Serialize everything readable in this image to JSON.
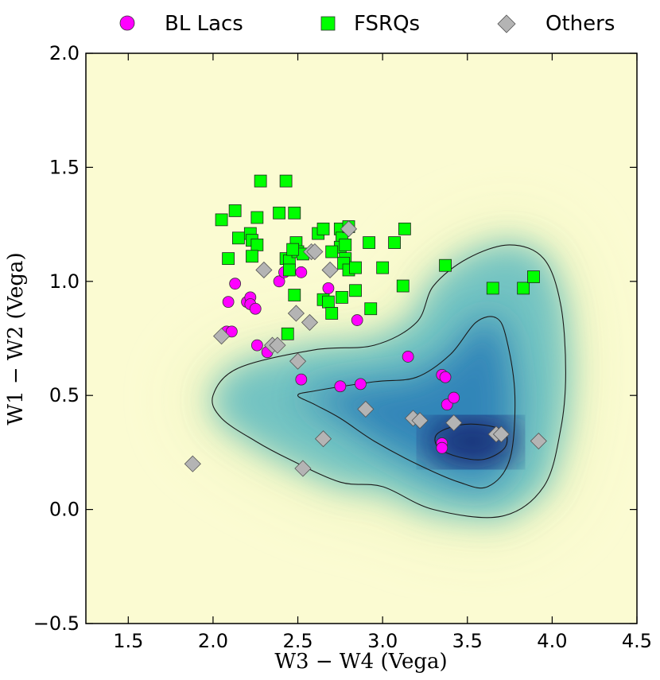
{
  "chart_data": {
    "type": "scatter",
    "xlabel": "W3 − W4 (Vega)",
    "ylabel": "W1 − W2 (Vega)",
    "xlim": [
      1.25,
      4.5
    ],
    "ylim": [
      -0.5,
      2.0
    ],
    "x_ticks": [
      1.5,
      2.0,
      2.5,
      3.0,
      3.5,
      4.0,
      4.5
    ],
    "x_tick_labels": [
      "1.5",
      "2.0",
      "2.5",
      "3.0",
      "3.5",
      "4.0",
      "4.5"
    ],
    "y_ticks": [
      -0.5,
      0.0,
      0.5,
      1.0,
      1.5,
      2.0
    ],
    "y_tick_labels": [
      "−0.5",
      "0.0",
      "0.5",
      "1.0",
      "1.5",
      "2.0"
    ],
    "legend_position": "top, outside plot",
    "background": {
      "type": "density",
      "description": "WISE blazar strip density",
      "colors": {
        "low": "#fbfbd2",
        "mid": "#41b6c4",
        "high": "#0c1a5a"
      }
    },
    "contours": [
      {
        "level": "outer",
        "points": [
          [
            2.05,
            0.4
          ],
          [
            2.0,
            0.5
          ],
          [
            2.15,
            0.62
          ],
          [
            2.6,
            0.7
          ],
          [
            2.95,
            0.72
          ],
          [
            3.2,
            0.82
          ],
          [
            3.3,
            0.98
          ],
          [
            3.5,
            1.1
          ],
          [
            3.75,
            1.16
          ],
          [
            3.95,
            1.1
          ],
          [
            4.05,
            0.9
          ],
          [
            4.08,
            0.6
          ],
          [
            4.05,
            0.35
          ],
          [
            3.95,
            0.1
          ],
          [
            3.7,
            -0.03
          ],
          [
            3.3,
            0.0
          ],
          [
            3.0,
            0.1
          ],
          [
            2.75,
            0.12
          ],
          [
            2.45,
            0.22
          ],
          [
            2.25,
            0.3
          ]
        ]
      },
      {
        "level": "middle",
        "points": [
          [
            2.5,
            0.5
          ],
          [
            2.6,
            0.52
          ],
          [
            2.95,
            0.56
          ],
          [
            3.2,
            0.58
          ],
          [
            3.4,
            0.68
          ],
          [
            3.55,
            0.82
          ],
          [
            3.67,
            0.84
          ],
          [
            3.73,
            0.75
          ],
          [
            3.78,
            0.5
          ],
          [
            3.75,
            0.22
          ],
          [
            3.62,
            0.1
          ],
          [
            3.45,
            0.12
          ],
          [
            3.2,
            0.2
          ],
          [
            2.95,
            0.3
          ],
          [
            2.75,
            0.4
          ],
          [
            2.6,
            0.46
          ]
        ]
      },
      {
        "level": "inner",
        "points": [
          [
            3.32,
            0.33
          ],
          [
            3.45,
            0.37
          ],
          [
            3.6,
            0.37
          ],
          [
            3.72,
            0.34
          ],
          [
            3.72,
            0.27
          ],
          [
            3.6,
            0.22
          ],
          [
            3.45,
            0.23
          ],
          [
            3.33,
            0.27
          ]
        ]
      }
    ],
    "series": [
      {
        "name": "BL Lacs",
        "marker": "circle",
        "color": "#ff00ff",
        "points": [
          [
            2.09,
            0.91
          ],
          [
            2.13,
            0.99
          ],
          [
            2.08,
            0.78
          ],
          [
            2.11,
            0.78
          ],
          [
            2.2,
            0.91
          ],
          [
            2.22,
            0.93
          ],
          [
            2.22,
            0.9
          ],
          [
            2.25,
            0.88
          ],
          [
            2.26,
            0.72
          ],
          [
            2.32,
            0.69
          ],
          [
            2.39,
            1.0
          ],
          [
            2.42,
            1.04
          ],
          [
            2.45,
            1.06
          ],
          [
            2.52,
            1.04
          ],
          [
            2.68,
            0.97
          ],
          [
            2.52,
            0.57
          ],
          [
            2.75,
            0.54
          ],
          [
            2.85,
            0.83
          ],
          [
            2.87,
            0.55
          ],
          [
            3.15,
            0.67
          ],
          [
            3.35,
            0.59
          ],
          [
            3.37,
            0.58
          ],
          [
            3.38,
            0.46
          ],
          [
            3.42,
            0.49
          ],
          [
            3.35,
            0.29
          ],
          [
            3.35,
            0.27
          ]
        ]
      },
      {
        "name": "FSRQs",
        "marker": "square",
        "color": "#00ff00",
        "points": [
          [
            2.28,
            1.44
          ],
          [
            2.43,
            1.44
          ],
          [
            2.13,
            1.31
          ],
          [
            2.05,
            1.27
          ],
          [
            2.26,
            1.28
          ],
          [
            2.39,
            1.3
          ],
          [
            2.48,
            1.3
          ],
          [
            2.15,
            1.19
          ],
          [
            2.22,
            1.21
          ],
          [
            2.23,
            1.18
          ],
          [
            2.26,
            1.16
          ],
          [
            2.23,
            1.11
          ],
          [
            2.09,
            1.1
          ],
          [
            2.43,
            1.1
          ],
          [
            2.45,
            1.09
          ],
          [
            2.49,
            1.17
          ],
          [
            2.5,
            1.13
          ],
          [
            2.53,
            1.12
          ],
          [
            2.47,
            1.14
          ],
          [
            2.45,
            1.05
          ],
          [
            2.62,
            1.21
          ],
          [
            2.65,
            1.23
          ],
          [
            2.75,
            1.23
          ],
          [
            2.76,
            1.19
          ],
          [
            2.8,
            1.24
          ],
          [
            2.75,
            1.15
          ],
          [
            2.78,
            1.16
          ],
          [
            2.7,
            1.13
          ],
          [
            2.78,
            1.1
          ],
          [
            2.77,
            1.08
          ],
          [
            2.8,
            1.05
          ],
          [
            2.84,
            1.06
          ],
          [
            2.92,
            1.17
          ],
          [
            3.07,
            1.17
          ],
          [
            3.13,
            1.23
          ],
          [
            3.0,
            1.06
          ],
          [
            3.12,
            0.98
          ],
          [
            3.37,
            1.07
          ],
          [
            2.48,
            0.94
          ],
          [
            2.65,
            0.92
          ],
          [
            2.68,
            0.91
          ],
          [
            2.7,
            0.86
          ],
          [
            2.76,
            0.93
          ],
          [
            2.84,
            0.96
          ],
          [
            2.93,
            0.88
          ],
          [
            2.44,
            0.77
          ],
          [
            3.65,
            0.97
          ],
          [
            3.83,
            0.97
          ],
          [
            3.89,
            1.02
          ]
        ]
      },
      {
        "name": "Others",
        "marker": "diamond",
        "color": "#b4b4b4",
        "points": [
          [
            2.3,
            1.05
          ],
          [
            2.58,
            1.13
          ],
          [
            2.6,
            1.13
          ],
          [
            2.69,
            1.05
          ],
          [
            2.8,
            1.23
          ],
          [
            2.49,
            0.86
          ],
          [
            2.57,
            0.82
          ],
          [
            2.05,
            0.76
          ],
          [
            2.35,
            0.72
          ],
          [
            2.38,
            0.72
          ],
          [
            2.5,
            0.65
          ],
          [
            2.9,
            0.44
          ],
          [
            3.18,
            0.4
          ],
          [
            3.22,
            0.39
          ],
          [
            3.42,
            0.38
          ],
          [
            2.65,
            0.31
          ],
          [
            1.88,
            0.2
          ],
          [
            2.53,
            0.18
          ],
          [
            3.67,
            0.33
          ],
          [
            3.7,
            0.33
          ],
          [
            3.92,
            0.3
          ]
        ]
      }
    ]
  }
}
